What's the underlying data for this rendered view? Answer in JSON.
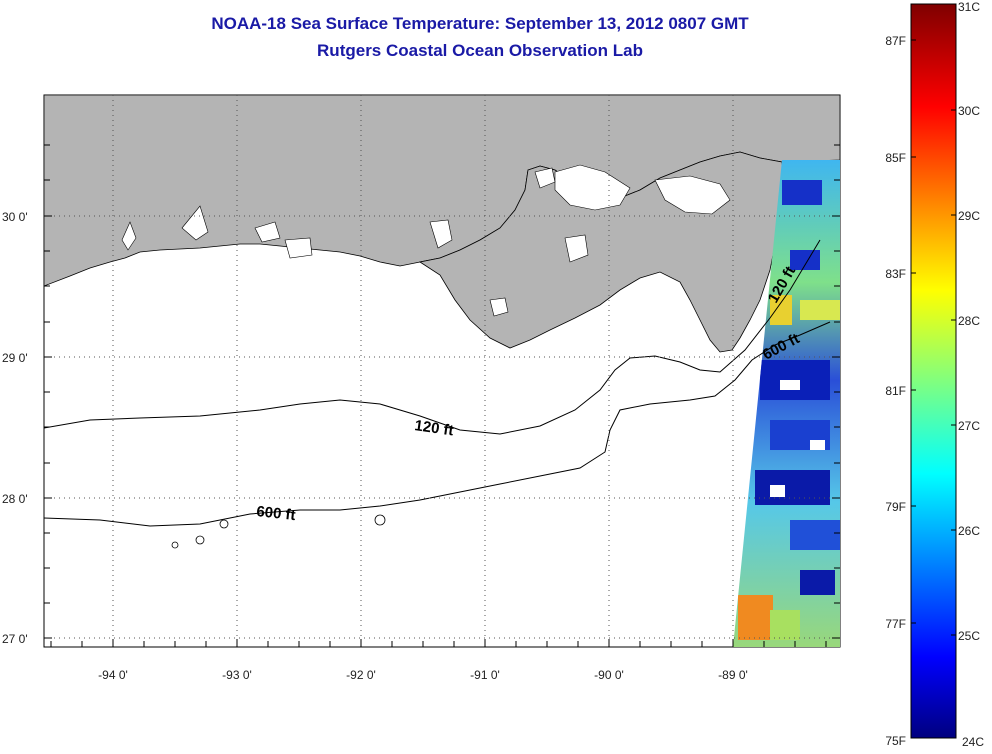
{
  "title": {
    "line1": "NOAA-18 Sea Surface Temperature:  September 13, 2012 0807 GMT",
    "line2": "Rutgers Coastal Ocean Observation Lab"
  },
  "axes": {
    "lat_labels": [
      "30 0'",
      "29 0'",
      "28 0'",
      "27 0'"
    ],
    "lon_labels": [
      "-94 0'",
      "-93 0'",
      "-92 0'",
      "-91 0'",
      "-90 0'",
      "-89 0'"
    ]
  },
  "contours": {
    "shallow_label": "120 ft",
    "deep_label": "600 ft",
    "shallow_label_east": "120 ft",
    "deep_label_east": "600 ft"
  },
  "colorbar": {
    "fahrenheit_labels": [
      "87F",
      "85F",
      "83F",
      "81F",
      "79F",
      "77F",
      "75F"
    ],
    "celsius_labels": [
      "31C",
      "30C",
      "29C",
      "28C",
      "27C",
      "26C",
      "25C",
      "24C"
    ]
  },
  "colors": {
    "land": "#b4b4b4",
    "title": "#1a1aa6"
  }
}
